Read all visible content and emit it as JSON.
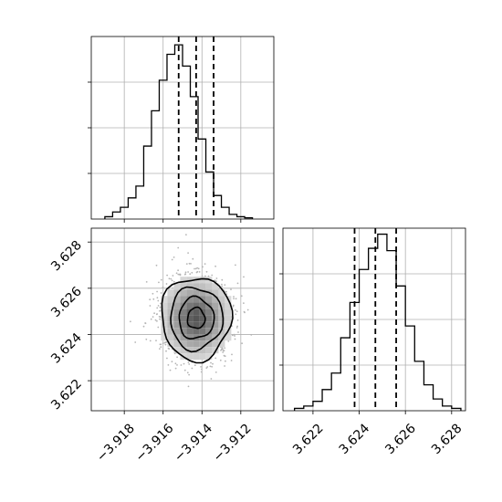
{
  "chart_data": [
    {
      "panel": "top-left",
      "type": "histogram",
      "variable": "x",
      "xlim": [
        -3.9197,
        -3.9103
      ],
      "ylim": [
        0,
        1
      ],
      "grid": true,
      "quantiles": [
        -3.9152,
        -3.9143,
        -3.9134
      ],
      "bins_x0": -3.919,
      "bin_width": 0.0004,
      "values": [
        0.01,
        0.03,
        0.05,
        0.09,
        0.14,
        0.31,
        0.46,
        0.59,
        0.7,
        0.74,
        0.65,
        0.52,
        0.34,
        0.2,
        0.1,
        0.05,
        0.02,
        0.01,
        0.005
      ]
    },
    {
      "panel": "bottom-left",
      "type": "2d-histogram",
      "x_variable": "x",
      "y_variable": "y",
      "xlim": [
        -3.9197,
        -3.9103
      ],
      "ylim": [
        3.6207,
        3.6286
      ],
      "grid": true,
      "center": [
        -3.9143,
        3.6247
      ],
      "sigma": [
        0.0009,
        0.0009
      ],
      "contour_levels": [
        "0.5-sigma",
        "1-sigma",
        "1.5-sigma",
        "2-sigma"
      ],
      "xticks": [
        -3.918,
        -3.916,
        -3.914,
        -3.912
      ],
      "xtick_labels": [
        "−3.918",
        "−3.916",
        "−3.914",
        "−3.912"
      ],
      "yticks": [
        3.622,
        3.624,
        3.626,
        3.628
      ],
      "ytick_labels": [
        "3.622",
        "3.624",
        "3.626",
        "3.628"
      ]
    },
    {
      "panel": "bottom-right",
      "type": "histogram",
      "variable": "y",
      "xlim": [
        3.6207,
        3.6286
      ],
      "ylim": [
        0,
        1
      ],
      "grid": true,
      "quantiles": [
        3.6238,
        3.6247,
        3.6256
      ],
      "bins_x0": 3.6212,
      "bin_width": 0.0004,
      "values": [
        0.01,
        0.02,
        0.04,
        0.09,
        0.16,
        0.31,
        0.46,
        0.6,
        0.69,
        0.75,
        0.68,
        0.53,
        0.36,
        0.21,
        0.11,
        0.05,
        0.02,
        0.01
      ],
      "xticks": [
        3.622,
        3.624,
        3.626,
        3.628
      ],
      "xtick_labels": [
        "3.622",
        "3.624",
        "3.626",
        "3.628"
      ]
    }
  ]
}
